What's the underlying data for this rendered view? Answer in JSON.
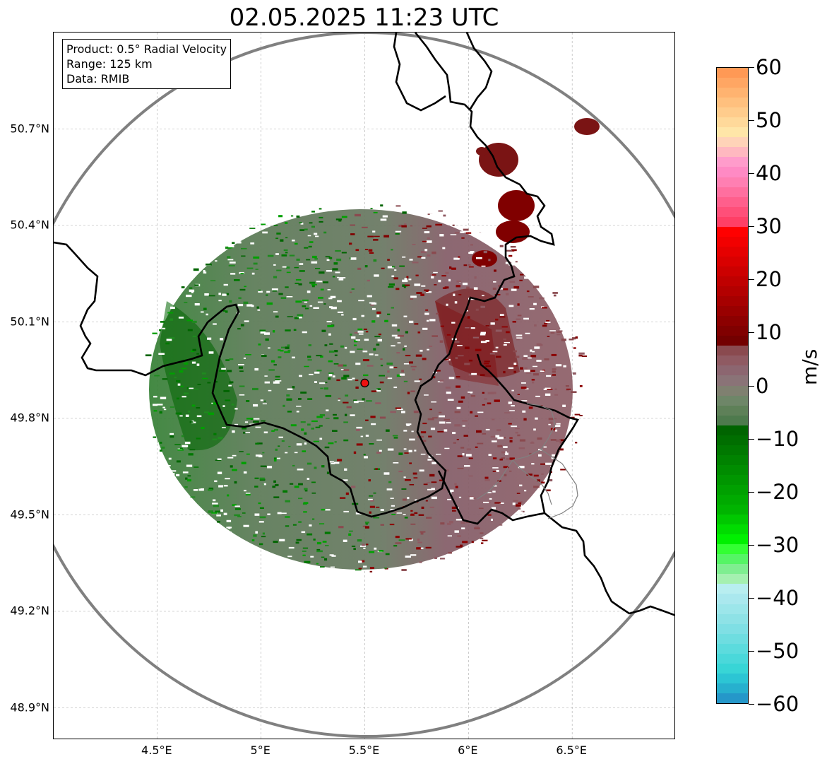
{
  "title": "02.05.2025 11:23 UTC",
  "info": {
    "product": "Product: 0.5° Radial Velocity",
    "range": "Range: 125 km",
    "data": "Data: RMIB"
  },
  "axes": {
    "lat_labels": [
      "50.7°N",
      "50.4°N",
      "50.1°N",
      "49.8°N",
      "49.5°N",
      "49.2°N",
      "48.9°N"
    ],
    "lon_labels": [
      "4.5°E",
      "5°E",
      "5.5°E",
      "6°E",
      "6.5°E"
    ],
    "lat_values": [
      50.7,
      50.4,
      50.1,
      49.8,
      49.5,
      49.2,
      48.9
    ],
    "lon_values": [
      4.5,
      5.0,
      5.5,
      6.0,
      6.5
    ],
    "lon_range": [
      4.0,
      7.0
    ],
    "lat_range": [
      48.8,
      51.0
    ]
  },
  "radar_site": {
    "lon": 5.5,
    "lat": 49.91
  },
  "colorbar": {
    "unit": "m/s",
    "tick_labels": [
      "60",
      "50",
      "40",
      "30",
      "20",
      "10",
      "0",
      "−10",
      "−20",
      "−30",
      "−40",
      "−50",
      "−60"
    ],
    "tick_values": [
      60,
      50,
      40,
      30,
      20,
      10,
      0,
      -10,
      -20,
      -30,
      -40,
      -50,
      -60
    ],
    "range": [
      -60,
      60
    ],
    "colors": [
      "#ff9955",
      "#ffa663",
      "#ffb370",
      "#ffc07e",
      "#ffcc8c",
      "#ffd99a",
      "#ffe6a8",
      "#ffd3b8",
      "#ffb8c0",
      "#ff9ccb",
      "#ff8ac4",
      "#ff7fb2",
      "#ff6f9f",
      "#ff5f8c",
      "#ff4f79",
      "#ff3f66",
      "#ff0000",
      "#f20000",
      "#e50000",
      "#d90000",
      "#cc0000",
      "#bf0000",
      "#b30000",
      "#a60000",
      "#990000",
      "#8c0000",
      "#800000",
      "#730000",
      "#8a4a4f",
      "#8f5a62",
      "#8c6670",
      "#8a7377",
      "#7f8070",
      "#6e8668",
      "#5e8058",
      "#4e7a4d",
      "#006400",
      "#006e00",
      "#007800",
      "#008200",
      "#008c00",
      "#009600",
      "#00a000",
      "#00aa00",
      "#00b400",
      "#00c800",
      "#00dc00",
      "#00f000",
      "#33ff33",
      "#55f565",
      "#7fee90",
      "#a5f0b0",
      "#b8eef0",
      "#aae8ee",
      "#9ce6ea",
      "#8ee2e6",
      "#7fdfe4",
      "#6edde0",
      "#5cdbdd",
      "#4ad8da",
      "#38d5d6",
      "#2cc5d4",
      "#27b0ce",
      "#2597c9"
    ]
  }
}
